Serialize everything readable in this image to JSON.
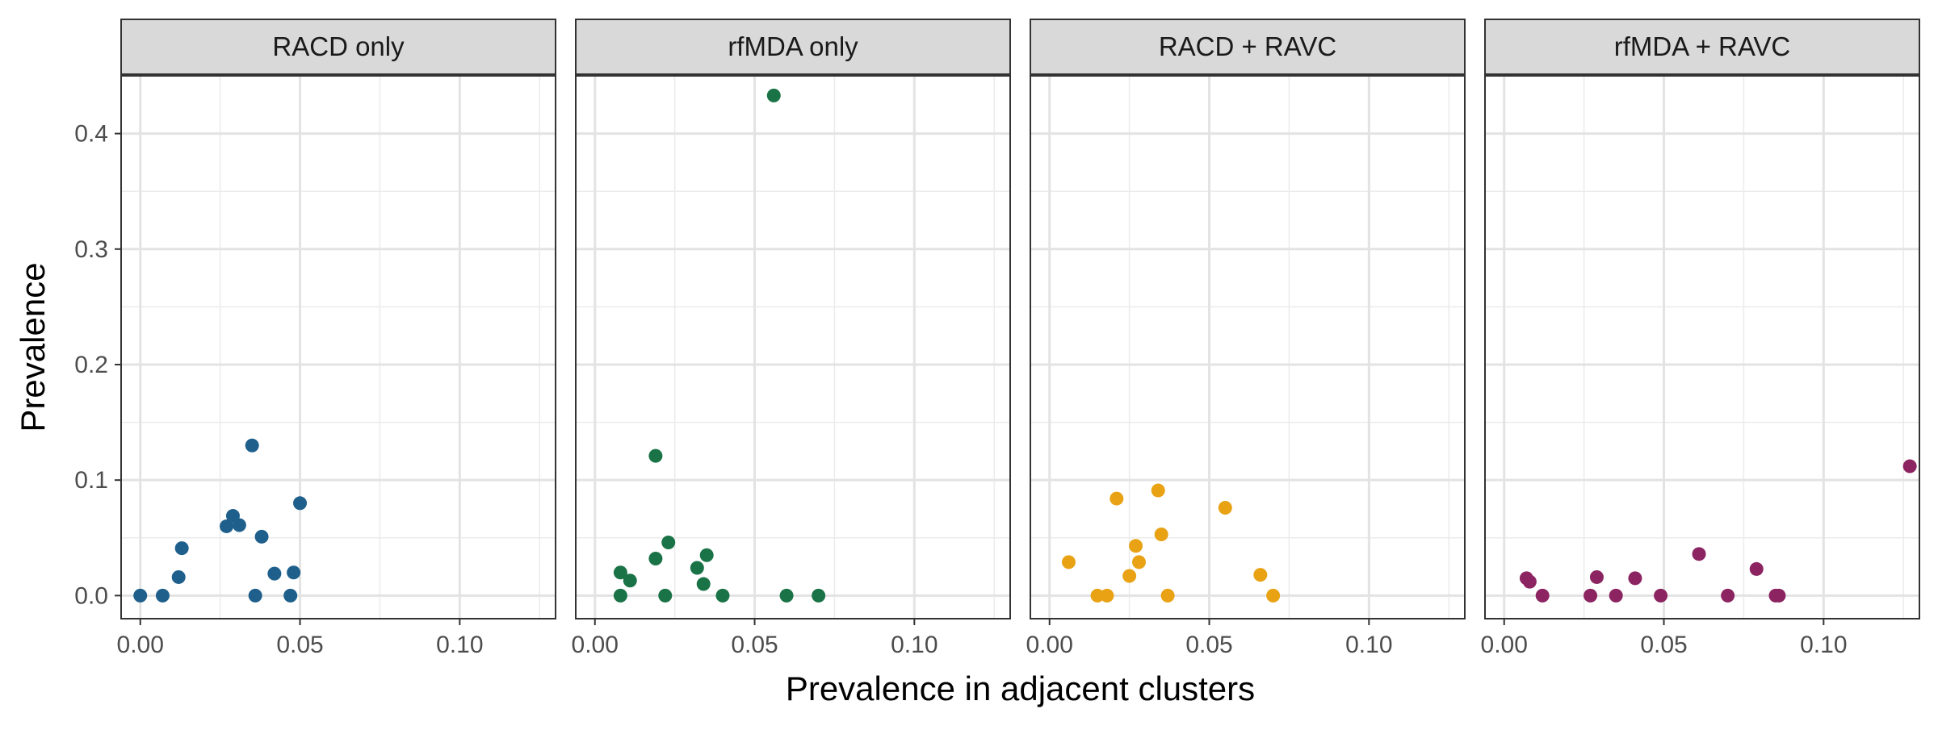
{
  "chart_data": {
    "type": "scatter",
    "layout": "faceted",
    "xlabel": "Prevalence in adjacent clusters",
    "ylabel": "Prevalence",
    "xlim": [
      -0.006,
      0.13
    ],
    "ylim": [
      -0.02,
      0.45
    ],
    "x_ticks": [
      0.0,
      0.05,
      0.1
    ],
    "x_tick_labels": [
      "0.00",
      "0.05",
      "0.10"
    ],
    "x_minor_ticks": [
      0.025,
      0.075,
      0.125
    ],
    "y_ticks": [
      0.0,
      0.1,
      0.2,
      0.3,
      0.4
    ],
    "y_tick_labels": [
      "0.0",
      "0.1",
      "0.2",
      "0.3",
      "0.4"
    ],
    "y_minor_ticks": [
      0.05,
      0.15,
      0.25,
      0.35
    ],
    "grid": true,
    "legend": "none",
    "panels": [
      {
        "title": "RACD only",
        "color": "#1f5f8b",
        "points": [
          {
            "x": 0.0,
            "y": 0.0
          },
          {
            "x": 0.007,
            "y": 0.0
          },
          {
            "x": 0.012,
            "y": 0.016
          },
          {
            "x": 0.013,
            "y": 0.041
          },
          {
            "x": 0.027,
            "y": 0.06
          },
          {
            "x": 0.029,
            "y": 0.069
          },
          {
            "x": 0.031,
            "y": 0.061
          },
          {
            "x": 0.035,
            "y": 0.13
          },
          {
            "x": 0.036,
            "y": 0.0
          },
          {
            "x": 0.038,
            "y": 0.051
          },
          {
            "x": 0.042,
            "y": 0.019
          },
          {
            "x": 0.047,
            "y": 0.0
          },
          {
            "x": 0.048,
            "y": 0.02
          },
          {
            "x": 0.05,
            "y": 0.08
          }
        ]
      },
      {
        "title": "rfMDA only",
        "color": "#1a7346",
        "points": [
          {
            "x": 0.008,
            "y": 0.0
          },
          {
            "x": 0.008,
            "y": 0.02
          },
          {
            "x": 0.011,
            "y": 0.013
          },
          {
            "x": 0.019,
            "y": 0.032
          },
          {
            "x": 0.019,
            "y": 0.121
          },
          {
            "x": 0.022,
            "y": 0.0
          },
          {
            "x": 0.023,
            "y": 0.046
          },
          {
            "x": 0.032,
            "y": 0.024
          },
          {
            "x": 0.034,
            "y": 0.01
          },
          {
            "x": 0.035,
            "y": 0.035
          },
          {
            "x": 0.04,
            "y": 0.0
          },
          {
            "x": 0.056,
            "y": 0.433
          },
          {
            "x": 0.06,
            "y": 0.0
          },
          {
            "x": 0.07,
            "y": 0.0
          }
        ]
      },
      {
        "title": "RACD + RAVC",
        "color": "#e8a214",
        "points": [
          {
            "x": 0.006,
            "y": 0.029
          },
          {
            "x": 0.015,
            "y": 0.0
          },
          {
            "x": 0.018,
            "y": 0.0
          },
          {
            "x": 0.021,
            "y": 0.084
          },
          {
            "x": 0.025,
            "y": 0.017
          },
          {
            "x": 0.027,
            "y": 0.043
          },
          {
            "x": 0.028,
            "y": 0.029
          },
          {
            "x": 0.034,
            "y": 0.091
          },
          {
            "x": 0.035,
            "y": 0.053
          },
          {
            "x": 0.037,
            "y": 0.0
          },
          {
            "x": 0.055,
            "y": 0.076
          },
          {
            "x": 0.066,
            "y": 0.018
          },
          {
            "x": 0.07,
            "y": 0.0
          }
        ]
      },
      {
        "title": "rfMDA + RAVC",
        "color": "#8b2461",
        "points": [
          {
            "x": 0.007,
            "y": 0.015
          },
          {
            "x": 0.008,
            "y": 0.012
          },
          {
            "x": 0.012,
            "y": 0.0
          },
          {
            "x": 0.027,
            "y": 0.0
          },
          {
            "x": 0.029,
            "y": 0.016
          },
          {
            "x": 0.035,
            "y": 0.0
          },
          {
            "x": 0.041,
            "y": 0.015
          },
          {
            "x": 0.049,
            "y": 0.0
          },
          {
            "x": 0.061,
            "y": 0.036
          },
          {
            "x": 0.07,
            "y": 0.0
          },
          {
            "x": 0.079,
            "y": 0.023
          },
          {
            "x": 0.085,
            "y": 0.0
          },
          {
            "x": 0.086,
            "y": 0.0
          },
          {
            "x": 0.127,
            "y": 0.112
          }
        ]
      }
    ]
  }
}
